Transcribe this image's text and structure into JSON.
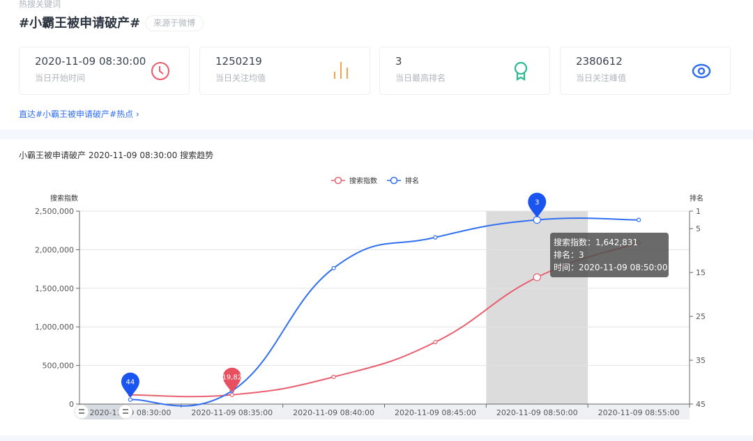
{
  "header": {
    "keyword_label": "热搜关键词",
    "title": "#小霸王被申请破产#",
    "source_badge": "来源于微博"
  },
  "stats": [
    {
      "value": "2020-11-09 08:30:00",
      "label": "当日开始时间",
      "icon": "clock-icon",
      "color": "#e85a6a"
    },
    {
      "value": "1250219",
      "label": "当日关注均值",
      "icon": "bar-chart-icon",
      "color": "#f5a34a"
    },
    {
      "value": "3",
      "label": "当日最高排名",
      "icon": "award-icon",
      "color": "#2bb98f"
    },
    {
      "value": "2380612",
      "label": "当日关注峰值",
      "icon": "eye-icon",
      "color": "#2f6ff0"
    }
  ],
  "hot_link": "直达#小霸王被申请破产#热点 ›",
  "chart_title": "小霸王被申请破产 2020-11-09 08:30:00 搜索趋势",
  "chart_data": {
    "type": "line",
    "categories": [
      "2020-11-09 08:30:00",
      "2020-11-09 08:35:00",
      "2020-11-09 08:40:00",
      "2020-11-09 08:45:00",
      "2020-11-09 08:50:00",
      "2020-11-09 08:55:00"
    ],
    "series": [
      {
        "name": "搜索指数",
        "axis": "left",
        "color": "#e8606f",
        "values": [
          119826,
          119826,
          352000,
          803000,
          1642831,
          2090000
        ]
      },
      {
        "name": "排名",
        "axis": "right",
        "color": "#2f6ff0",
        "values": [
          44,
          42,
          14,
          7,
          3,
          3
        ]
      }
    ],
    "ylabel_left": "搜索指数",
    "ylim_left": [
      0,
      2500000
    ],
    "yticks_left": [
      "0",
      "500,000",
      "1,000,000",
      "1,500,000",
      "2,000,000",
      "2,500,000"
    ],
    "ylabel_right": "排名",
    "ylim_right": [
      1,
      45
    ],
    "right_inverse": true,
    "yticks_right": [
      1,
      5,
      15,
      25,
      35,
      45
    ],
    "legend_position": "top-center",
    "grid": true,
    "mark_points": [
      {
        "series": "排名",
        "category_index": 0,
        "label": "44"
      },
      {
        "series": "搜索指数",
        "category_index": 1,
        "label": "119,826"
      },
      {
        "series": "排名",
        "category_index": 4,
        "label": "3"
      }
    ],
    "highlight_category_index": 4,
    "tooltip": {
      "lines": [
        "搜索指数：1,642,831",
        "排名：3",
        "时间：2020-11-09 08:50:00"
      ]
    },
    "data_zoom_visible_label": "2020-"
  }
}
